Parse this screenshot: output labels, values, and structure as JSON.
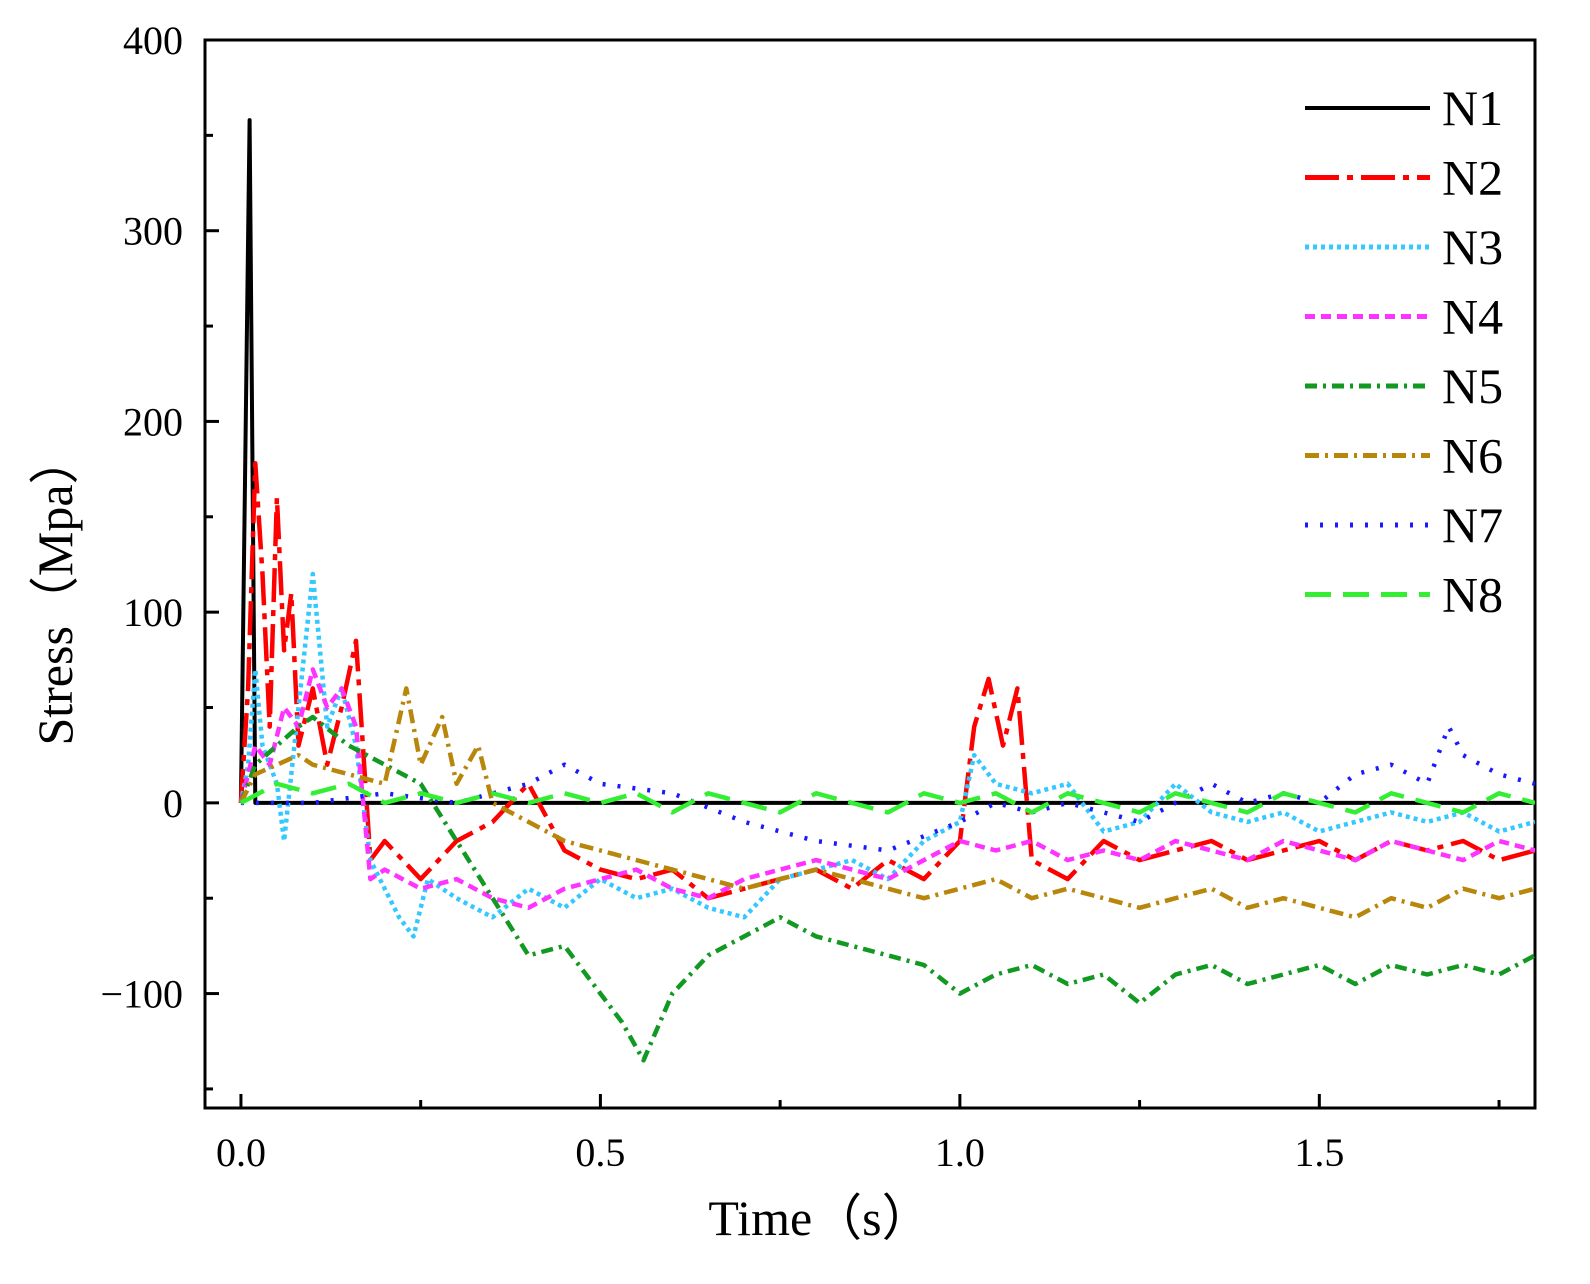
{
  "chart_data": {
    "type": "line",
    "title": "",
    "xlabel": "Time（s）",
    "ylabel": "Stress（Mpa）",
    "xlim": [
      -0.05,
      1.8
    ],
    "ylim": [
      -160,
      400
    ],
    "x_ticks": [
      0.0,
      0.5,
      1.0,
      1.5
    ],
    "x_tick_labels": [
      "0.0",
      "0.5",
      "1.0",
      "1.5"
    ],
    "y_ticks": [
      -100,
      0,
      100,
      200,
      300,
      400
    ],
    "y_tick_labels": [
      "−100",
      "0",
      "100",
      "200",
      "300",
      "400"
    ],
    "legend_position": "top-right",
    "series": [
      {
        "name": "N1",
        "color": "#000000",
        "dash": "",
        "x": [
          0.0,
          0.012,
          0.02,
          0.03,
          0.1,
          0.5,
          1.0,
          1.5,
          1.8
        ],
        "y": [
          0,
          358,
          0,
          0,
          0,
          0,
          0,
          0,
          0
        ]
      },
      {
        "name": "N2",
        "color": "#ff0000",
        "dash": "34,8,6,8",
        "x": [
          0.0,
          0.01,
          0.02,
          0.03,
          0.04,
          0.05,
          0.06,
          0.07,
          0.08,
          0.1,
          0.12,
          0.14,
          0.16,
          0.18,
          0.2,
          0.25,
          0.3,
          0.35,
          0.4,
          0.45,
          0.5,
          0.55,
          0.6,
          0.65,
          0.7,
          0.75,
          0.8,
          0.85,
          0.9,
          0.95,
          1.0,
          1.02,
          1.04,
          1.06,
          1.08,
          1.1,
          1.15,
          1.2,
          1.25,
          1.3,
          1.35,
          1.4,
          1.45,
          1.5,
          1.55,
          1.6,
          1.65,
          1.7,
          1.75,
          1.8
        ],
        "y": [
          0,
          60,
          178,
          120,
          40,
          160,
          80,
          110,
          30,
          60,
          20,
          50,
          85,
          -30,
          -20,
          -40,
          -20,
          -10,
          10,
          -25,
          -35,
          -40,
          -35,
          -50,
          -45,
          -40,
          -35,
          -45,
          -30,
          -40,
          -20,
          40,
          65,
          30,
          60,
          -30,
          -40,
          -20,
          -30,
          -25,
          -20,
          -30,
          -25,
          -20,
          -30,
          -20,
          -25,
          -20,
          -30,
          -25
        ]
      },
      {
        "name": "N3",
        "color": "#33c8ff",
        "dash": "4,4",
        "x": [
          0.0,
          0.01,
          0.02,
          0.03,
          0.05,
          0.06,
          0.08,
          0.1,
          0.12,
          0.14,
          0.16,
          0.18,
          0.2,
          0.22,
          0.24,
          0.26,
          0.3,
          0.35,
          0.4,
          0.45,
          0.5,
          0.55,
          0.6,
          0.65,
          0.7,
          0.75,
          0.8,
          0.85,
          0.9,
          0.95,
          1.0,
          1.02,
          1.05,
          1.1,
          1.15,
          1.2,
          1.25,
          1.3,
          1.35,
          1.4,
          1.45,
          1.5,
          1.55,
          1.6,
          1.65,
          1.7,
          1.75,
          1.8
        ],
        "y": [
          0,
          20,
          70,
          30,
          10,
          -20,
          50,
          120,
          40,
          60,
          30,
          -30,
          -45,
          -60,
          -70,
          -40,
          -50,
          -60,
          -45,
          -55,
          -40,
          -50,
          -45,
          -55,
          -60,
          -40,
          -35,
          -30,
          -40,
          -20,
          -10,
          25,
          10,
          5,
          10,
          -15,
          -10,
          10,
          -5,
          -10,
          -5,
          -15,
          -10,
          -5,
          -10,
          -5,
          -15,
          -10
        ]
      },
      {
        "name": "N4",
        "color": "#ff33ff",
        "dash": "10,6",
        "x": [
          0.0,
          0.02,
          0.04,
          0.06,
          0.08,
          0.1,
          0.12,
          0.14,
          0.16,
          0.18,
          0.2,
          0.25,
          0.3,
          0.35,
          0.4,
          0.45,
          0.5,
          0.55,
          0.6,
          0.65,
          0.7,
          0.75,
          0.8,
          0.85,
          0.9,
          0.95,
          1.0,
          1.05,
          1.1,
          1.15,
          1.2,
          1.25,
          1.3,
          1.35,
          1.4,
          1.45,
          1.5,
          1.55,
          1.6,
          1.65,
          1.7,
          1.75,
          1.8
        ],
        "y": [
          0,
          30,
          20,
          50,
          40,
          70,
          50,
          60,
          40,
          -40,
          -35,
          -45,
          -40,
          -50,
          -55,
          -45,
          -40,
          -35,
          -45,
          -50,
          -40,
          -35,
          -30,
          -35,
          -40,
          -30,
          -20,
          -25,
          -20,
          -30,
          -25,
          -30,
          -20,
          -25,
          -30,
          -20,
          -25,
          -30,
          -20,
          -25,
          -30,
          -20,
          -25
        ]
      },
      {
        "name": "N5",
        "color": "#119922",
        "dash": "12,6,3,6",
        "x": [
          0.0,
          0.02,
          0.05,
          0.08,
          0.1,
          0.15,
          0.2,
          0.25,
          0.3,
          0.35,
          0.4,
          0.45,
          0.5,
          0.53,
          0.56,
          0.6,
          0.65,
          0.7,
          0.75,
          0.8,
          0.85,
          0.9,
          0.95,
          1.0,
          1.05,
          1.1,
          1.15,
          1.2,
          1.25,
          1.3,
          1.35,
          1.4,
          1.45,
          1.5,
          1.55,
          1.6,
          1.65,
          1.7,
          1.75,
          1.8
        ],
        "y": [
          0,
          20,
          30,
          40,
          45,
          30,
          20,
          10,
          -20,
          -50,
          -80,
          -75,
          -100,
          -115,
          -135,
          -100,
          -80,
          -70,
          -60,
          -70,
          -75,
          -80,
          -85,
          -100,
          -90,
          -85,
          -95,
          -90,
          -105,
          -90,
          -85,
          -95,
          -90,
          -85,
          -95,
          -85,
          -90,
          -85,
          -90,
          -80
        ]
      },
      {
        "name": "N6",
        "color": "#b8860b",
        "dash": "14,6,3,6",
        "x": [
          0.0,
          0.02,
          0.05,
          0.08,
          0.1,
          0.15,
          0.2,
          0.23,
          0.25,
          0.28,
          0.3,
          0.33,
          0.35,
          0.4,
          0.45,
          0.5,
          0.55,
          0.6,
          0.65,
          0.7,
          0.75,
          0.8,
          0.85,
          0.9,
          0.95,
          1.0,
          1.05,
          1.1,
          1.15,
          1.2,
          1.25,
          1.3,
          1.35,
          1.4,
          1.45,
          1.5,
          1.55,
          1.6,
          1.65,
          1.7,
          1.75,
          1.8
        ],
        "y": [
          0,
          15,
          20,
          25,
          20,
          15,
          10,
          60,
          20,
          45,
          10,
          30,
          0,
          -10,
          -20,
          -25,
          -30,
          -35,
          -40,
          -45,
          -40,
          -35,
          -40,
          -45,
          -50,
          -45,
          -40,
          -50,
          -45,
          -50,
          -55,
          -50,
          -45,
          -55,
          -50,
          -55,
          -60,
          -50,
          -55,
          -45,
          -50,
          -45
        ]
      },
      {
        "name": "N7",
        "color": "#1a1aff",
        "dash": "3,12",
        "x": [
          0.0,
          0.1,
          0.2,
          0.3,
          0.4,
          0.45,
          0.5,
          0.6,
          0.7,
          0.8,
          0.9,
          1.0,
          1.05,
          1.1,
          1.15,
          1.2,
          1.25,
          1.3,
          1.35,
          1.4,
          1.45,
          1.5,
          1.55,
          1.6,
          1.65,
          1.68,
          1.7,
          1.75,
          1.8
        ],
        "y": [
          0,
          0,
          5,
          0,
          10,
          20,
          10,
          5,
          -10,
          -20,
          -25,
          -10,
          0,
          -5,
          0,
          -5,
          -10,
          0,
          10,
          0,
          5,
          0,
          15,
          20,
          10,
          40,
          25,
          15,
          10
        ]
      },
      {
        "name": "N8",
        "color": "#33ee33",
        "dash": "26,12",
        "x": [
          0.0,
          0.05,
          0.1,
          0.15,
          0.2,
          0.25,
          0.3,
          0.35,
          0.4,
          0.45,
          0.5,
          0.55,
          0.6,
          0.65,
          0.7,
          0.75,
          0.8,
          0.85,
          0.9,
          0.95,
          1.0,
          1.05,
          1.1,
          1.15,
          1.2,
          1.25,
          1.3,
          1.35,
          1.4,
          1.45,
          1.5,
          1.55,
          1.6,
          1.65,
          1.7,
          1.75,
          1.8
        ],
        "y": [
          0,
          10,
          5,
          10,
          0,
          5,
          0,
          5,
          0,
          5,
          0,
          5,
          -5,
          5,
          0,
          -5,
          5,
          0,
          -5,
          5,
          0,
          5,
          -5,
          5,
          0,
          -5,
          5,
          0,
          -5,
          5,
          0,
          -5,
          5,
          0,
          -5,
          5,
          0
        ]
      }
    ]
  }
}
